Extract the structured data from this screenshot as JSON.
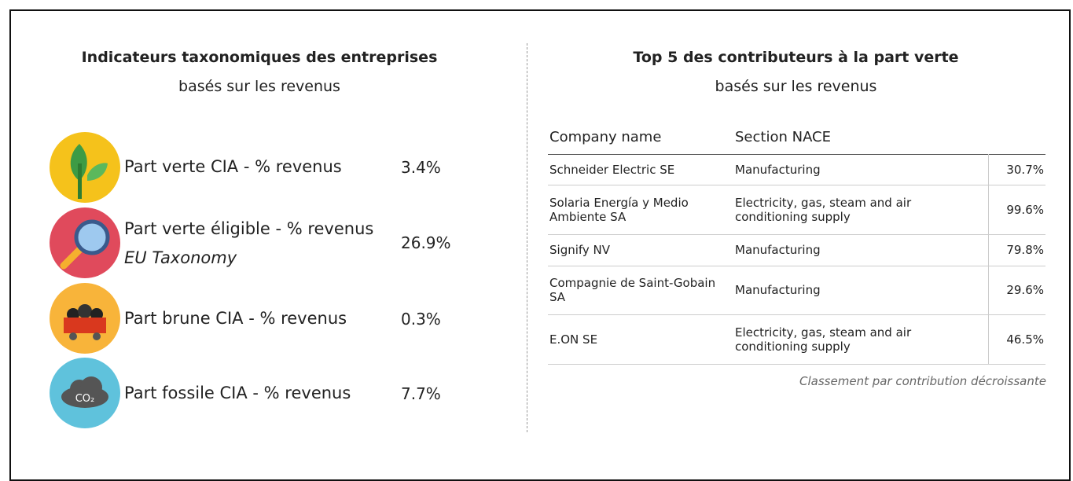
{
  "left": {
    "title": "Indicateurs taxonomiques des entreprises",
    "subtitle": "basés sur les revenus",
    "indicators": [
      {
        "label": "Part verte CIA - % revenus",
        "value": "3.4%"
      },
      {
        "label": "Part verte éligible - % revenus",
        "note": "EU Taxonomy",
        "value": "26.9%"
      },
      {
        "label": "Part brune CIA - % revenus",
        "value": "0.3%"
      },
      {
        "label": "Part fossile CIA - % revenus",
        "value": "7.7%",
        "icon_text": "CO₂"
      }
    ]
  },
  "right": {
    "title": "Top 5 des contributeurs à la part verte",
    "subtitle": "basés sur les revenus",
    "table": {
      "headers": [
        "Company name",
        "Section NACE"
      ],
      "rows": [
        [
          "Schneider Electric SE",
          "Manufacturing",
          "30.7%"
        ],
        [
          "Solaria Energía y Medio Ambiente SA",
          "Electricity, gas, steam and air conditioning supply",
          "99.6%"
        ],
        [
          "Signify NV",
          "Manufacturing",
          "79.8%"
        ],
        [
          "Compagnie de Saint-Gobain SA",
          "Manufacturing",
          "29.6%"
        ],
        [
          "E.ON SE",
          "Electricity, gas, steam and air conditioning supply",
          "46.5%"
        ]
      ]
    },
    "footnote": "Classement par contribution décroissante"
  }
}
